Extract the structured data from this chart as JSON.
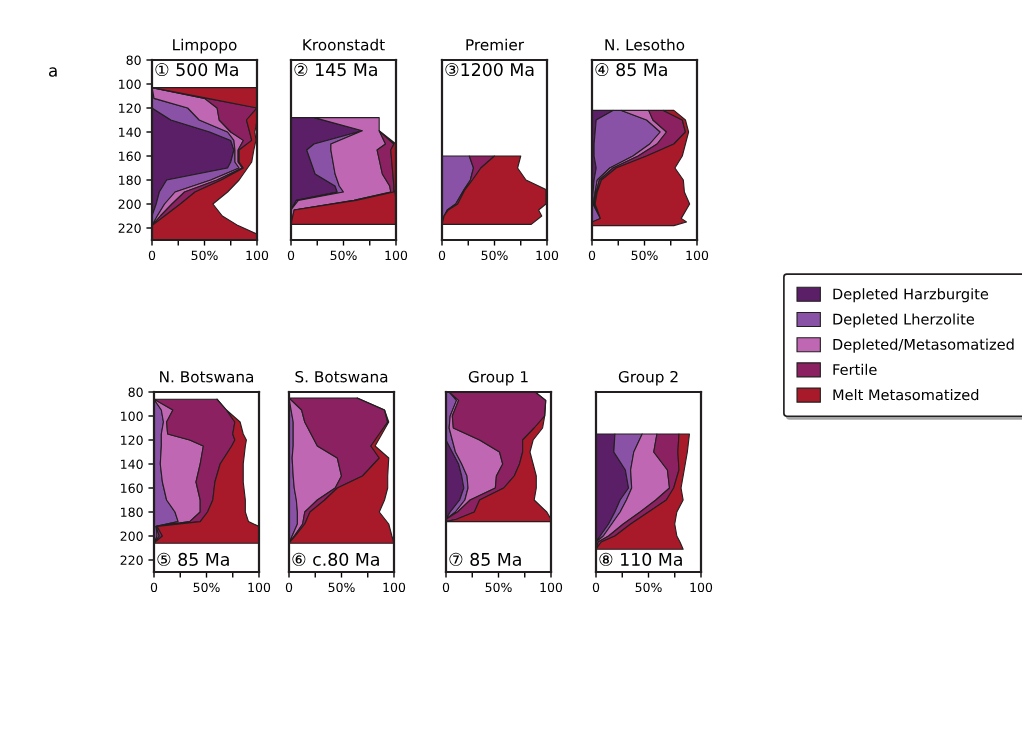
{
  "chart_data": [
    {
      "type": "area",
      "stacked": true,
      "orientation": "horizontal",
      "title": "Limpopo",
      "annotations": [
        "① 500 Ma",
        "a"
      ],
      "x": [
        103,
        112,
        120,
        130,
        140,
        147,
        155,
        165,
        170,
        180,
        190,
        200,
        210,
        218,
        225,
        230
      ],
      "ylim": [
        230,
        80
      ],
      "yticks": [
        80,
        100,
        120,
        140,
        160,
        180,
        200,
        220
      ],
      "xlim": [
        0,
        100
      ],
      "xticks": [
        0,
        {
          "value": 25,
          "label": null
        },
        {
          "value": 50,
          "label": "50%"
        },
        {
          "value": 75,
          "label": null
        },
        100
      ],
      "series": [
        {
          "color": "#5b1f68",
          "values": [
            null,
            null,
            0,
            18,
            55,
            75,
            78,
            75,
            72,
            14,
            7,
            4,
            0,
            null,
            null,
            null
          ]
        },
        {
          "color": "#8a52a6",
          "values": [
            0,
            2,
            34,
            27,
            17,
            3,
            1,
            4,
            11,
            42,
            15,
            8,
            5,
            0,
            null,
            null
          ]
        },
        {
          "color": "#c067b4",
          "values": [
            0,
            48,
            28,
            19,
            3,
            9,
            3,
            3,
            3,
            6,
            9,
            7,
            3,
            0,
            null,
            null
          ]
        },
        {
          "color": "#8b2160",
          "values": [
            0,
            3,
            38,
            26,
            18,
            8,
            1,
            1,
            1,
            4,
            10,
            8,
            4,
            0,
            null,
            null
          ]
        },
        {
          "color": "#a81a2a",
          "values": [
            100,
            47,
            0,
            10,
            5,
            4,
            14,
            12,
            4,
            17,
            31,
            31,
            55,
            82,
            100,
            100
          ]
        }
      ]
    },
    {
      "type": "area",
      "stacked": true,
      "orientation": "horizontal",
      "title": "Kroonstadt",
      "annotations": [
        "② 145 Ma"
      ],
      "tick_labels": "x",
      "x": [
        128,
        139,
        150,
        155,
        175,
        185,
        190,
        197,
        205,
        217
      ],
      "ylim": [
        230,
        80
      ],
      "yticks": [
        80,
        100,
        120,
        140,
        160,
        180,
        200,
        220
      ],
      "xlim": [
        0,
        100
      ],
      "xticks": [
        0,
        {
          "value": 25,
          "label": null
        },
        {
          "value": 50,
          "label": "50%"
        },
        {
          "value": 75,
          "label": null
        },
        100
      ],
      "series": [
        {
          "color": "#5b1f68",
          "values": [
            22,
            68,
            22,
            15,
            23,
            42,
            44,
            5,
            0,
            null
          ]
        },
        {
          "color": "#8a52a6",
          "values": [
            null,
            0,
            16,
            23,
            19,
            4,
            6,
            2,
            0,
            null
          ]
        },
        {
          "color": "#c067b4",
          "values": [
            62,
            16,
            52,
            44,
            45,
            48,
            45,
            53,
            3,
            0
          ]
        },
        {
          "color": "#8b2160",
          "values": [
            null,
            0,
            8,
            13,
            10,
            4,
            3,
            2,
            0,
            null
          ]
        },
        {
          "color": "#a81a2a",
          "values": [
            null,
            0,
            2,
            5,
            3,
            2,
            1,
            38,
            97,
            100
          ]
        }
      ]
    },
    {
      "type": "area",
      "stacked": true,
      "orientation": "horizontal",
      "title": "Premier",
      "annotations": [
        "③1200 Ma"
      ],
      "tick_labels": "x",
      "x": [
        160,
        170,
        180,
        188,
        200,
        205,
        210,
        217
      ],
      "ylim": [
        230,
        80
      ],
      "yticks": [
        80,
        100,
        120,
        140,
        160,
        180,
        200,
        220
      ],
      "xlim": [
        0,
        100
      ],
      "xticks": [
        0,
        {
          "value": 25,
          "label": null
        },
        {
          "value": 50,
          "label": "50%"
        },
        {
          "value": 75,
          "label": null
        },
        100
      ],
      "series": [
        {
          "color": "#8a52a6",
          "values": [
            26,
            30,
            27,
            21,
            13,
            5,
            2,
            0
          ]
        },
        {
          "color": "#8b2160",
          "values": [
            24,
            7,
            2,
            1,
            2,
            1,
            0,
            null
          ]
        },
        {
          "color": "#a81a2a",
          "values": [
            25,
            35,
            51,
            77,
            84,
            86,
            93,
            85
          ]
        }
      ]
    },
    {
      "type": "area",
      "stacked": true,
      "orientation": "horizontal",
      "title": "N. Lesotho",
      "annotations": [
        "④ 85 Ma"
      ],
      "tick_labels": "x",
      "x": [
        122,
        130,
        140,
        150,
        160,
        170,
        180,
        190,
        200,
        212,
        215,
        218
      ],
      "ylim": [
        230,
        80
      ],
      "yticks": [
        80,
        100,
        120,
        140,
        160,
        180,
        200,
        220
      ],
      "xlim": [
        0,
        100
      ],
      "xticks": [
        0,
        {
          "value": 25,
          "label": null
        },
        {
          "value": 50,
          "label": "50%"
        },
        {
          "value": 75,
          "label": null
        },
        100
      ],
      "series": [
        {
          "color": "#5b1f68",
          "values": [
            20,
            4,
            3,
            2,
            2,
            4,
            2,
            1,
            0,
            null,
            null,
            null
          ]
        },
        {
          "color": "#8a52a6",
          "values": [
            8,
            48,
            62,
            53,
            37,
            13,
            3,
            2,
            1,
            8,
            0,
            null
          ]
        },
        {
          "color": "#c067b4",
          "values": [
            26,
            6,
            6,
            7,
            5,
            3,
            2,
            1,
            1,
            0,
            null,
            null
          ]
        },
        {
          "color": "#8b2160",
          "values": [
            14,
            28,
            18,
            16,
            8,
            3,
            2,
            1,
            1,
            0,
            null,
            null
          ]
        },
        {
          "color": "#a81a2a",
          "values": [
            10,
            3,
            3,
            11,
            34,
            56,
            78,
            83,
            90,
            77,
            90,
            78
          ]
        }
      ]
    },
    {
      "type": "area",
      "stacked": true,
      "orientation": "horizontal",
      "title": "N. Botswana",
      "annotations": [
        "⑤ 85 Ma"
      ],
      "x": [
        86,
        95,
        105,
        115,
        120,
        125,
        140,
        155,
        170,
        180,
        188,
        192,
        200,
        206
      ],
      "ylim": [
        230,
        80
      ],
      "yticks": [
        80,
        100,
        120,
        140,
        160,
        180,
        200,
        220
      ],
      "xlim": [
        0,
        100
      ],
      "xticks": [
        0,
        {
          "value": 25,
          "label": null
        },
        {
          "value": 50,
          "label": "50%"
        },
        {
          "value": 75,
          "label": null
        },
        100
      ],
      "series": [
        {
          "color": "#8a52a6",
          "values": [
            0,
            7,
            9,
            7,
            7,
            7,
            6,
            8,
            12,
            20,
            23,
            2,
            3,
            0
          ]
        },
        {
          "color": "#c067b4",
          "values": [
            0,
            11,
            3,
            6,
            27,
            40,
            38,
            32,
            32,
            24,
            11,
            0,
            2,
            0
          ]
        },
        {
          "color": "#8b2160",
          "values": [
            60,
            51,
            65,
            62,
            43,
            27,
            19,
            18,
            12,
            7,
            10,
            1,
            3,
            0
          ]
        },
        {
          "color": "#a81a2a",
          "values": [
            0,
            0,
            5,
            10,
            11,
            13,
            22,
            27,
            31,
            36,
            46,
            97,
            92,
            100
          ]
        }
      ]
    },
    {
      "type": "area",
      "stacked": true,
      "orientation": "horizontal",
      "title": "S. Botswana",
      "annotations": [
        "⑥ c.80 Ma"
      ],
      "tick_labels": "x",
      "x": [
        85,
        95,
        105,
        125,
        135,
        150,
        160,
        170,
        180,
        190,
        200,
        206
      ],
      "ylim": [
        230,
        80
      ],
      "yticks": [
        80,
        100,
        120,
        140,
        160,
        180,
        200,
        220
      ],
      "xlim": [
        0,
        100
      ],
      "xticks": [
        0,
        {
          "value": 25,
          "label": null
        },
        {
          "value": 50,
          "label": "50%"
        },
        {
          "value": 75,
          "label": null
        },
        100
      ],
      "series": [
        {
          "color": "#8a52a6",
          "values": [
            0,
            2,
            4,
            4,
            3,
            4,
            5,
            7,
            8,
            8,
            3,
            0
          ]
        },
        {
          "color": "#c067b4",
          "values": [
            0,
            10,
            11,
            23,
            43,
            46,
            39,
            20,
            7,
            5,
            2,
            0
          ]
        },
        {
          "color": "#8b2160",
          "values": [
            65,
            79,
            79,
            51,
            40,
            20,
            2,
            7,
            5,
            2,
            1,
            0
          ]
        },
        {
          "color": "#a81a2a",
          "values": [
            0,
            0,
            1,
            4,
            9,
            24,
            48,
            57,
            66,
            80,
            92,
            100
          ]
        }
      ]
    },
    {
      "type": "area",
      "stacked": true,
      "orientation": "horizontal",
      "title": "Group 1",
      "annotations": [
        "⑦ 85 Ma"
      ],
      "tick_labels": "x",
      "x": [
        80,
        87,
        100,
        110,
        120,
        130,
        140,
        150,
        160,
        170,
        180,
        186,
        188
      ],
      "ylim": [
        230,
        80
      ],
      "yticks": [
        80,
        100,
        120,
        140,
        160,
        180,
        200,
        220
      ],
      "xlim": [
        0,
        100
      ],
      "xticks": [
        0,
        {
          "value": 25,
          "label": null
        },
        {
          "value": 50,
          "label": "50%"
        },
        {
          "value": 75,
          "label": null
        },
        100
      ],
      "series": [
        {
          "color": "#5b1f68",
          "values": [
            null,
            null,
            null,
            null,
            0,
            6,
            12,
            15,
            17,
            13,
            4,
            0,
            null
          ]
        },
        {
          "color": "#8a52a6",
          "values": [
            3,
            10,
            4,
            3,
            6,
            3,
            3,
            5,
            4,
            5,
            5,
            0,
            null
          ]
        },
        {
          "color": "#c067b4",
          "values": [
            0,
            2,
            2,
            4,
            26,
            42,
            39,
            28,
            26,
            5,
            2,
            0,
            null
          ]
        },
        {
          "color": "#8b2160",
          "values": [
            82,
            83,
            88,
            77,
            41,
            22,
            16,
            17,
            8,
            9,
            16,
            10,
            0
          ]
        },
        {
          "color": "#a81a2a",
          "values": [
            0,
            0,
            0,
            8,
            10,
            7,
            13,
            21,
            31,
            52,
            69,
            90,
            100
          ]
        }
      ]
    },
    {
      "type": "area",
      "stacked": true,
      "orientation": "horizontal",
      "title": "Group 2",
      "annotations": [
        "⑧ 110 Ma"
      ],
      "tick_labels": "x",
      "legend": "right",
      "x": [
        115,
        130,
        145,
        160,
        170,
        180,
        190,
        200,
        205,
        211
      ],
      "ylim": [
        230,
        80
      ],
      "yticks": [
        80,
        100,
        120,
        140,
        160,
        180,
        200,
        220
      ],
      "xlim": [
        0,
        100
      ],
      "xticks": [
        0,
        {
          "value": 25,
          "label": null
        },
        {
          "value": 50,
          "label": "50%"
        },
        {
          "value": 75,
          "label": null
        },
        100
      ],
      "series": [
        {
          "name": "Depleted Harzburgite",
          "color": "#5b1f68",
          "values": [
            18,
            17,
            28,
            31,
            23,
            18,
            12,
            4,
            0,
            null
          ]
        },
        {
          "name": "Depleted Lherzolite",
          "color": "#8a52a6",
          "values": [
            26,
            19,
            5,
            3,
            6,
            5,
            3,
            3,
            0,
            null
          ]
        },
        {
          "name": "Depleted/Metasomatized",
          "color": "#c067b4",
          "values": [
            14,
            19,
            35,
            36,
            28,
            19,
            11,
            5,
            2,
            0
          ]
        },
        {
          "name": "Fertile",
          "color": "#8b2160",
          "values": [
            21,
            23,
            11,
            4,
            10,
            8,
            7,
            6,
            3,
            0
          ]
        },
        {
          "name": "Melt Metasomatized",
          "color": "#a81a2a",
          "values": [
            10,
            9,
            5,
            7,
            16,
            27,
            42,
            59,
            75,
            83
          ]
        }
      ]
    }
  ]
}
